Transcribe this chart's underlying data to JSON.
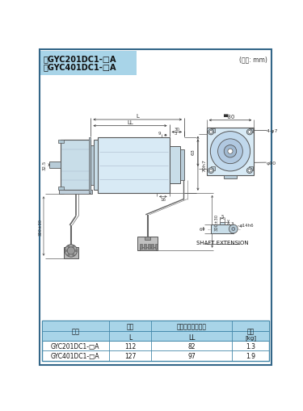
{
  "title_line1": "・GYC201DC1-□A",
  "title_line2": "・GYC401DC1-□A",
  "unit_label": "(単位: mm)",
  "bg_color": "#ffffff",
  "title_bg": "#a8d4e8",
  "motor_fill": "#d8eaf5",
  "motor_stroke": "#555555",
  "gearbox_fill": "#c8dde8",
  "flange_fill": "#ddeef8",
  "cable_color": "#666666",
  "connector_fill": "#cccccc",
  "dim_color": "#333333",
  "table_header_bg": "#a8d4e8",
  "table_border": "#4488aa",
  "table_rows": [
    [
      "GYC201DC1-□A",
      "112",
      "82",
      "1.3"
    ],
    [
      "GYC401DC1-□A",
      "127",
      "97",
      "1.9"
    ]
  ],
  "col_h1": [
    "形式",
    "全長",
    "寸法（フランジ）",
    "質量"
  ],
  "col_h2": [
    "",
    "L",
    "LL",
    "[kg]"
  ],
  "shaft_label": "SHAFT EXTENSION"
}
